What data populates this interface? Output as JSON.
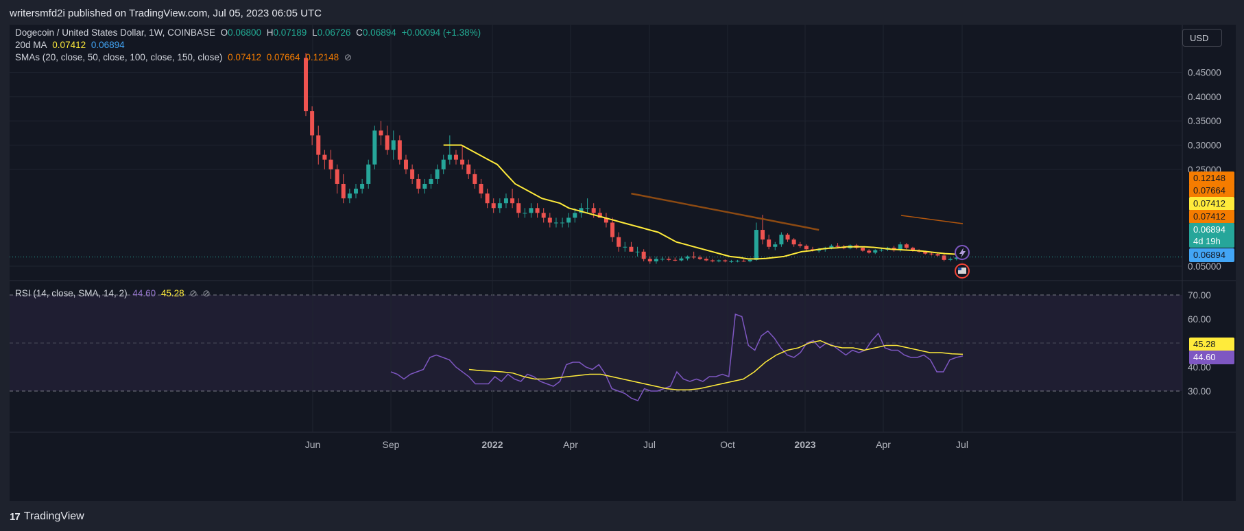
{
  "header": {
    "publish_text": "writersmfd2i published on TradingView.com, Jul 05, 2023 06:05 UTC"
  },
  "legend": {
    "symbol": "Dogecoin / United States Dollar, 1W, COINBASE",
    "o_label": "O",
    "o_value": "0.06800",
    "h_label": "H",
    "h_value": "0.07189",
    "l_label": "L",
    "l_value": "0.06726",
    "c_label": "C",
    "c_value": "0.06894",
    "change": "+0.00094 (+1.38%)",
    "ma_label": "20d MA",
    "ma_value1": "0.07412",
    "ma_value2": "0.06894",
    "sma_label": "SMAs (20, close, 50, close, 100, close, 150, close)",
    "sma_v1": "0.07412",
    "sma_v2": "0.07664",
    "sma_v3": "0.12148",
    "eye_icon": "eye-slash-icon",
    "eye_glyph": "⊘"
  },
  "rsi_legend": {
    "label": "RSI (14, close, SMA, 14, 2)",
    "v1": "44.60",
    "v2": "45.28",
    "eye_glyph": "⊘"
  },
  "currency_button": "USD",
  "price_badges": {
    "sma100": "0.12148",
    "sma50": "0.07664",
    "sma20": "0.07412",
    "ma20": "0.07412",
    "last": "0.06894",
    "countdown": "4d 19h",
    "ma_last": "0.06894"
  },
  "rsi_badges": {
    "sma": "45.28",
    "rsi": "44.60"
  },
  "footer": {
    "logo_mark": "17",
    "brand": "TradingView"
  },
  "colors": {
    "up": "#26a69a",
    "down": "#ef5350",
    "ma_yellow": "#ffeb3b",
    "sma_orange": "#f57c00",
    "sma100_brown": "#8d4a12",
    "rsi_line": "#7e57c2",
    "rsi_band": "#2a2440"
  },
  "chart_data": [
    {
      "type": "candlestick",
      "title": "Dogecoin / United States Dollar, 1W, COINBASE",
      "y_ticks": [
        "0.45000",
        "0.40000",
        "0.35000",
        "0.30000",
        "0.25000",
        "0.05000"
      ],
      "x_ticks": [
        "Jun",
        "Sep",
        "2022",
        "Apr",
        "Jul",
        "Oct",
        "2023",
        "Apr",
        "Jul"
      ],
      "ylim": [
        0.02,
        0.48
      ],
      "candles": [
        [
          0.48,
          0.49,
          0.36,
          0.37
        ],
        [
          0.37,
          0.38,
          0.3,
          0.32
        ],
        [
          0.32,
          0.34,
          0.26,
          0.28
        ],
        [
          0.28,
          0.29,
          0.25,
          0.27
        ],
        [
          0.27,
          0.29,
          0.23,
          0.25
        ],
        [
          0.25,
          0.26,
          0.2,
          0.22
        ],
        [
          0.22,
          0.24,
          0.18,
          0.19
        ],
        [
          0.19,
          0.21,
          0.18,
          0.2
        ],
        [
          0.2,
          0.22,
          0.19,
          0.21
        ],
        [
          0.21,
          0.23,
          0.2,
          0.22
        ],
        [
          0.22,
          0.27,
          0.21,
          0.26
        ],
        [
          0.26,
          0.34,
          0.25,
          0.33
        ],
        [
          0.33,
          0.35,
          0.3,
          0.32
        ],
        [
          0.32,
          0.34,
          0.28,
          0.29
        ],
        [
          0.29,
          0.33,
          0.27,
          0.31
        ],
        [
          0.31,
          0.32,
          0.26,
          0.27
        ],
        [
          0.27,
          0.28,
          0.24,
          0.25
        ],
        [
          0.25,
          0.26,
          0.22,
          0.23
        ],
        [
          0.23,
          0.24,
          0.2,
          0.21
        ],
        [
          0.21,
          0.23,
          0.2,
          0.22
        ],
        [
          0.22,
          0.24,
          0.21,
          0.23
        ],
        [
          0.23,
          0.26,
          0.22,
          0.25
        ],
        [
          0.25,
          0.28,
          0.24,
          0.27
        ],
        [
          0.27,
          0.32,
          0.26,
          0.28
        ],
        [
          0.28,
          0.29,
          0.26,
          0.27
        ],
        [
          0.27,
          0.3,
          0.25,
          0.26
        ],
        [
          0.26,
          0.27,
          0.23,
          0.24
        ],
        [
          0.24,
          0.25,
          0.21,
          0.22
        ],
        [
          0.22,
          0.23,
          0.19,
          0.2
        ],
        [
          0.2,
          0.21,
          0.17,
          0.18
        ],
        [
          0.18,
          0.19,
          0.16,
          0.17
        ],
        [
          0.17,
          0.19,
          0.16,
          0.18
        ],
        [
          0.18,
          0.2,
          0.17,
          0.19
        ],
        [
          0.19,
          0.21,
          0.17,
          0.18
        ],
        [
          0.18,
          0.19,
          0.15,
          0.16
        ],
        [
          0.16,
          0.17,
          0.15,
          0.16
        ],
        [
          0.16,
          0.18,
          0.15,
          0.17
        ],
        [
          0.17,
          0.18,
          0.15,
          0.16
        ],
        [
          0.16,
          0.17,
          0.14,
          0.15
        ],
        [
          0.15,
          0.16,
          0.13,
          0.14
        ],
        [
          0.14,
          0.15,
          0.13,
          0.14
        ],
        [
          0.14,
          0.15,
          0.13,
          0.14
        ],
        [
          0.14,
          0.16,
          0.13,
          0.15
        ],
        [
          0.15,
          0.17,
          0.14,
          0.16
        ],
        [
          0.16,
          0.18,
          0.15,
          0.17
        ],
        [
          0.17,
          0.19,
          0.16,
          0.17
        ],
        [
          0.17,
          0.18,
          0.15,
          0.16
        ],
        [
          0.16,
          0.17,
          0.15,
          0.15
        ],
        [
          0.15,
          0.16,
          0.13,
          0.14
        ],
        [
          0.14,
          0.15,
          0.1,
          0.11
        ],
        [
          0.11,
          0.12,
          0.08,
          0.09
        ],
        [
          0.09,
          0.1,
          0.08,
          0.09
        ],
        [
          0.09,
          0.1,
          0.08,
          0.08
        ],
        [
          0.08,
          0.09,
          0.07,
          0.08
        ],
        [
          0.08,
          0.085,
          0.06,
          0.065
        ],
        [
          0.065,
          0.07,
          0.055,
          0.06
        ],
        [
          0.06,
          0.07,
          0.055,
          0.065
        ],
        [
          0.065,
          0.07,
          0.06,
          0.065
        ],
        [
          0.065,
          0.07,
          0.06,
          0.063
        ],
        [
          0.063,
          0.068,
          0.06,
          0.062
        ],
        [
          0.062,
          0.07,
          0.06,
          0.066
        ],
        [
          0.066,
          0.072,
          0.062,
          0.07
        ],
        [
          0.07,
          0.08,
          0.065,
          0.068
        ],
        [
          0.068,
          0.072,
          0.063,
          0.065
        ],
        [
          0.065,
          0.068,
          0.06,
          0.062
        ],
        [
          0.062,
          0.065,
          0.058,
          0.06
        ],
        [
          0.06,
          0.064,
          0.058,
          0.062
        ],
        [
          0.062,
          0.064,
          0.058,
          0.06
        ],
        [
          0.06,
          0.063,
          0.057,
          0.06
        ],
        [
          0.06,
          0.063,
          0.058,
          0.061
        ],
        [
          0.061,
          0.064,
          0.059,
          0.06
        ],
        [
          0.06,
          0.065,
          0.058,
          0.063
        ],
        [
          0.063,
          0.14,
          0.061,
          0.125
        ],
        [
          0.125,
          0.156,
          0.095,
          0.105
        ],
        [
          0.105,
          0.115,
          0.085,
          0.09
        ],
        [
          0.09,
          0.1,
          0.083,
          0.095
        ],
        [
          0.095,
          0.12,
          0.09,
          0.115
        ],
        [
          0.115,
          0.118,
          0.1,
          0.105
        ],
        [
          0.105,
          0.108,
          0.09,
          0.095
        ],
        [
          0.095,
          0.1,
          0.088,
          0.092
        ],
        [
          0.092,
          0.095,
          0.082,
          0.085
        ],
        [
          0.085,
          0.09,
          0.08,
          0.082
        ],
        [
          0.082,
          0.088,
          0.078,
          0.085
        ],
        [
          0.085,
          0.09,
          0.08,
          0.088
        ],
        [
          0.088,
          0.095,
          0.085,
          0.092
        ],
        [
          0.092,
          0.098,
          0.088,
          0.09
        ],
        [
          0.09,
          0.094,
          0.085,
          0.087
        ],
        [
          0.087,
          0.095,
          0.085,
          0.093
        ],
        [
          0.093,
          0.096,
          0.085,
          0.088
        ],
        [
          0.088,
          0.09,
          0.08,
          0.082
        ],
        [
          0.082,
          0.085,
          0.076,
          0.078
        ],
        [
          0.078,
          0.085,
          0.075,
          0.083
        ],
        [
          0.083,
          0.088,
          0.08,
          0.084
        ],
        [
          0.084,
          0.09,
          0.081,
          0.088
        ],
        [
          0.088,
          0.092,
          0.08,
          0.083
        ],
        [
          0.083,
          0.1,
          0.08,
          0.095
        ],
        [
          0.095,
          0.098,
          0.085,
          0.088
        ],
        [
          0.088,
          0.09,
          0.08,
          0.082
        ],
        [
          0.082,
          0.085,
          0.078,
          0.08
        ],
        [
          0.08,
          0.082,
          0.074,
          0.076
        ],
        [
          0.076,
          0.08,
          0.072,
          0.075
        ],
        [
          0.075,
          0.078,
          0.07,
          0.072
        ],
        [
          0.072,
          0.075,
          0.06,
          0.063
        ],
        [
          0.063,
          0.068,
          0.06,
          0.065
        ],
        [
          0.065,
          0.07,
          0.062,
          0.068
        ],
        [
          0.068,
          0.072,
          0.067,
          0.0689
        ]
      ],
      "series": [
        {
          "name": "20d MA",
          "values": [
            0.3,
            0.3,
            0.3,
            0.29,
            0.28,
            0.27,
            0.26,
            0.24,
            0.22,
            0.21,
            0.2,
            0.19,
            0.185,
            0.18,
            0.17,
            0.165,
            0.16,
            0.155,
            0.15,
            0.145,
            0.14,
            0.135,
            0.13,
            0.125,
            0.12,
            0.11,
            0.1,
            0.095,
            0.09,
            0.085,
            0.08,
            0.075,
            0.07,
            0.068,
            0.065,
            0.065,
            0.066,
            0.068,
            0.07,
            0.075,
            0.08,
            0.082,
            0.085,
            0.087,
            0.088,
            0.09,
            0.09,
            0.09,
            0.089,
            0.087,
            0.085,
            0.084,
            0.083,
            0.082,
            0.08,
            0.078,
            0.076,
            0.075,
            0.074
          ]
        },
        {
          "name": "SMA 100",
          "values": [
            0.2,
            0.195,
            0.19,
            0.185,
            0.18,
            0.175,
            0.17,
            0.165,
            0.16,
            0.155,
            0.15,
            0.145,
            0.14,
            0.135,
            0.13,
            0.125
          ]
        }
      ]
    },
    {
      "type": "line",
      "title": "RSI (14, close, SMA, 14, 2)",
      "y_ticks": [
        "70.00",
        "60.00",
        "45.28",
        "44.60",
        "40.00",
        "30.00"
      ],
      "ylim": [
        20,
        75
      ],
      "series": [
        {
          "name": "RSI",
          "values": [
            38,
            37,
            35,
            37,
            38,
            39,
            44,
            45,
            44,
            43,
            40,
            38,
            36,
            33,
            33,
            33,
            36,
            34,
            37,
            35,
            34,
            37,
            36,
            34,
            33,
            32,
            34,
            41,
            42,
            42,
            40,
            39,
            41,
            37,
            31,
            30,
            29,
            27,
            26,
            31,
            30,
            30,
            31,
            32,
            38,
            35,
            34,
            35,
            34,
            36,
            36,
            37,
            36,
            62,
            61,
            49,
            47,
            53,
            55,
            52,
            48,
            45,
            44,
            46,
            50,
            51,
            48,
            50,
            49,
            47,
            45,
            47,
            46,
            47,
            51,
            54,
            48,
            47,
            47,
            45,
            44,
            44,
            45,
            43,
            38,
            38,
            43,
            44,
            44.6
          ]
        },
        {
          "name": "SMA",
          "values": [
            39,
            38.5,
            38.3,
            38,
            37.5,
            36,
            35,
            35,
            35.5,
            36,
            36.5,
            37,
            37,
            36,
            35,
            34,
            33,
            32,
            31,
            30.5,
            30.5,
            31,
            32,
            33,
            34,
            35,
            38,
            42,
            45,
            47,
            48,
            50,
            51,
            49,
            48,
            48,
            47,
            48,
            49,
            49,
            48,
            47,
            46,
            46,
            45.5,
            45.3
          ]
        }
      ]
    }
  ]
}
